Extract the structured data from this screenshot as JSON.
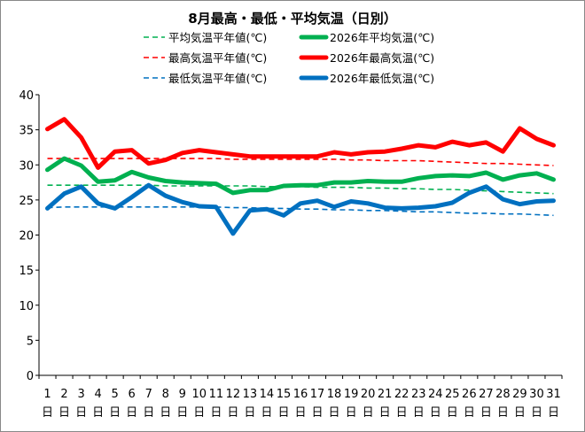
{
  "chart_data": {
    "type": "line",
    "title": "8月最高・最低・平均気温（日別）",
    "xlabel": "",
    "ylabel": "",
    "ylim": [
      0,
      40
    ],
    "yticks": [
      0,
      5,
      10,
      15,
      20,
      25,
      30,
      35,
      40
    ],
    "grid": false,
    "legend_position": "top",
    "categories": [
      [
        "1",
        "日"
      ],
      [
        "2",
        "日"
      ],
      [
        "3",
        "日"
      ],
      [
        "4",
        "日"
      ],
      [
        "5",
        "日"
      ],
      [
        "6",
        "日"
      ],
      [
        "7",
        "日"
      ],
      [
        "8",
        "日"
      ],
      [
        "9",
        "日"
      ],
      [
        "10",
        "日"
      ],
      [
        "11",
        "日"
      ],
      [
        "12",
        "日"
      ],
      [
        "13",
        "日"
      ],
      [
        "14",
        "日"
      ],
      [
        "15",
        "日"
      ],
      [
        "16",
        "日"
      ],
      [
        "17",
        "日"
      ],
      [
        "18",
        "日"
      ],
      [
        "19",
        "日"
      ],
      [
        "20",
        "日"
      ],
      [
        "21",
        "日"
      ],
      [
        "22",
        "日"
      ],
      [
        "23",
        "日"
      ],
      [
        "24",
        "日"
      ],
      [
        "25",
        "日"
      ],
      [
        "26",
        "日"
      ],
      [
        "27",
        "日"
      ],
      [
        "28",
        "日"
      ],
      [
        "29",
        "日"
      ],
      [
        "30",
        "日"
      ],
      [
        "31",
        "日"
      ]
    ],
    "series": [
      {
        "name": "平均気温平年値(℃)",
        "color": "#00b050",
        "style": "dashed",
        "width": 1.6,
        "key": "avg-normal",
        "values": [
          27.1,
          27.1,
          27.1,
          27.1,
          27.1,
          27.1,
          27.1,
          27.0,
          27.0,
          27.0,
          27.0,
          27.0,
          27.0,
          26.9,
          26.9,
          26.9,
          26.8,
          26.8,
          26.8,
          26.7,
          26.7,
          26.6,
          26.6,
          26.5,
          26.5,
          26.4,
          26.3,
          26.2,
          26.1,
          26.0,
          25.9
        ]
      },
      {
        "name": "最高気温平年値(℃)",
        "color": "#ff0000",
        "style": "dashed",
        "width": 1.6,
        "key": "max-normal",
        "values": [
          30.9,
          30.9,
          30.9,
          30.9,
          30.9,
          30.9,
          30.9,
          30.9,
          30.9,
          30.9,
          30.9,
          30.8,
          30.8,
          30.8,
          30.8,
          30.8,
          30.8,
          30.8,
          30.7,
          30.7,
          30.6,
          30.6,
          30.6,
          30.5,
          30.4,
          30.3,
          30.2,
          30.2,
          30.1,
          30.0,
          29.9
        ]
      },
      {
        "name": "最低気温平年値(℃)",
        "color": "#0070c0",
        "style": "dashed",
        "width": 1.6,
        "key": "min-normal",
        "values": [
          23.9,
          24.0,
          24.0,
          24.0,
          24.0,
          24.0,
          24.0,
          24.0,
          24.0,
          24.0,
          24.0,
          23.9,
          23.9,
          23.8,
          23.8,
          23.7,
          23.7,
          23.6,
          23.6,
          23.5,
          23.5,
          23.4,
          23.3,
          23.3,
          23.2,
          23.1,
          23.1,
          23.0,
          23.0,
          22.9,
          22.8
        ]
      },
      {
        "name": "2026年平均気温(℃)",
        "color": "#00b050",
        "style": "solid",
        "width": 5,
        "key": "avg-2026",
        "values": [
          29.3,
          30.9,
          29.9,
          27.6,
          27.8,
          29.0,
          28.2,
          27.7,
          27.5,
          27.4,
          27.3,
          26.0,
          26.4,
          26.4,
          27.0,
          27.1,
          27.1,
          27.5,
          27.5,
          27.7,
          27.6,
          27.6,
          28.1,
          28.4,
          28.5,
          28.4,
          28.9,
          27.9,
          28.5,
          28.8,
          27.9
        ]
      },
      {
        "name": "2026年最高気温(℃)",
        "color": "#ff0000",
        "style": "solid",
        "width": 5,
        "key": "max-2026",
        "values": [
          35.1,
          36.5,
          33.9,
          29.6,
          31.9,
          32.1,
          30.2,
          30.7,
          31.7,
          32.1,
          31.8,
          31.5,
          31.2,
          31.2,
          31.2,
          31.2,
          31.2,
          31.8,
          31.5,
          31.8,
          31.9,
          32.3,
          32.8,
          32.5,
          33.3,
          32.8,
          33.2,
          31.9,
          35.2,
          33.7,
          32.8
        ]
      },
      {
        "name": "2026年最低気温(℃)",
        "color": "#0070c0",
        "style": "solid",
        "width": 5,
        "key": "min-2026",
        "values": [
          23.8,
          25.9,
          26.9,
          24.5,
          23.8,
          25.4,
          27.1,
          25.6,
          24.7,
          24.1,
          24.0,
          20.2,
          23.5,
          23.7,
          22.8,
          24.5,
          24.9,
          24.0,
          24.8,
          24.5,
          23.9,
          23.8,
          23.9,
          24.1,
          24.6,
          26.0,
          26.9,
          25.1,
          24.4,
          24.8,
          24.9
        ]
      }
    ]
  }
}
